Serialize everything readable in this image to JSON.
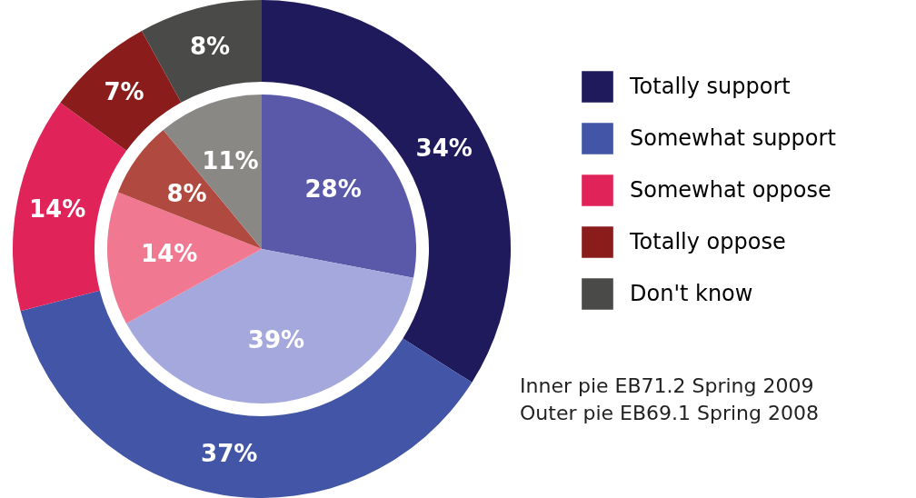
{
  "chart_data": {
    "type": "donut",
    "categories": [
      "Totally support",
      "Somewhat support",
      "Somewhat oppose",
      "Totally oppose",
      "Don't know"
    ],
    "series": [
      {
        "colors": [
          "#5a58a8",
          "#a4a8dc",
          "#f07890",
          "#b04a40",
          "#8a8884"
        ],
        "values": [
          28,
          39,
          14,
          8,
          11
        ],
        "value_labels": [
          "28%",
          "39%",
          "14%",
          "8%",
          "11%"
        ]
      },
      {
        "colors": [
          "#1e1a5c",
          "#4255a6",
          "#e0245a",
          "#8a1c1c",
          "#4a4a48"
        ],
        "values": [
          34,
          37,
          14,
          7,
          8
        ],
        "value_labels": [
          "34%",
          "37%",
          "14%",
          "7%",
          "8%"
        ]
      }
    ],
    "legend": "right",
    "annotations": [
      "Inner pie EB71.2 Spring 2009",
      "Outer pie EB69.1 Spring 2008"
    ]
  }
}
